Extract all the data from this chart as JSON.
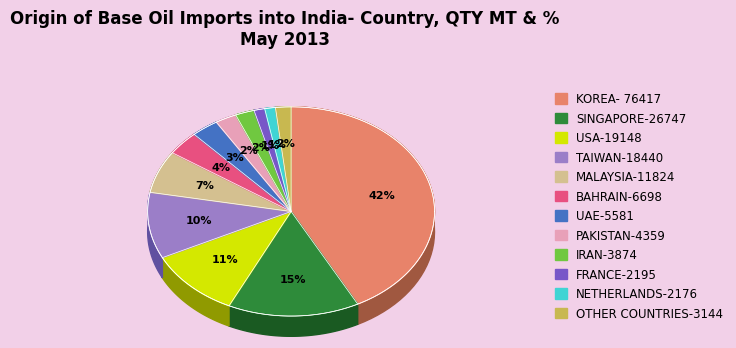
{
  "title": "Origin of Base Oil Imports into India- Country, QTY MT & %\nMay 2013",
  "labels": [
    "KOREA- 76417",
    "SINGAPORE-26747",
    "USA-19148",
    "TAIWAN-18440",
    "MALAYSIA-11824",
    "BAHRAIN-6698",
    "UAE-5581",
    "PAKISTAN-4359",
    "IRAN-3874",
    "FRANCE-2195",
    "NETHERLANDS-2176",
    "OTHER COUNTRIES-3144"
  ],
  "values": [
    76417,
    26747,
    19148,
    18440,
    11824,
    6698,
    5581,
    4359,
    3874,
    2195,
    2176,
    3144
  ],
  "colors": [
    "#E8836A",
    "#2E8B3A",
    "#D4E800",
    "#9B7EC8",
    "#D4C090",
    "#E85080",
    "#4472C4",
    "#E8A0B8",
    "#70C840",
    "#7856C8",
    "#40D4D4",
    "#C8B850"
  ],
  "shadow_colors": [
    "#A05840",
    "#1A5A22",
    "#909A00",
    "#6050A0",
    "#907850",
    "#A02050",
    "#203090",
    "#A07090",
    "#408020",
    "#503090",
    "#109090",
    "#807030"
  ],
  "background_color": "#F2D0E8",
  "title_fontsize": 12,
  "legend_fontsize": 8.5,
  "pct_labels": [
    "42%",
    "15%",
    "11%",
    "10%",
    "7%",
    "4%",
    "3%",
    "2%",
    "2%",
    "1%",
    "1%",
    "2%"
  ]
}
